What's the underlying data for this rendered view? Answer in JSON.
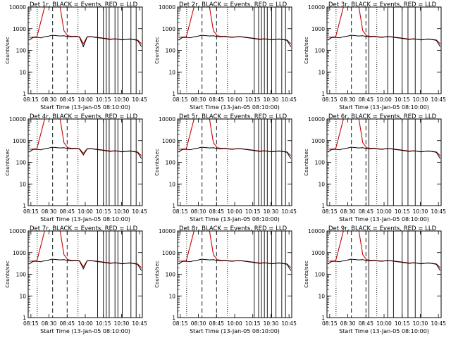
{
  "chart_data": {
    "type": "line",
    "panels": [
      {
        "title": "Det 1r, BLACK = Events, RED = LLD",
        "ylabel": "Counts/sec",
        "xlabel": "Start Time (13-Jan-05 08:10:00)",
        "xticks": [
          "08:15",
          "08:30",
          "08:45",
          "10:00",
          "10:15",
          "10:30",
          "10:45"
        ],
        "yticks": [
          "1",
          "10",
          "100",
          "1000",
          "10000"
        ],
        "ylim": [
          1,
          10000
        ],
        "yscale": "log",
        "solid_events": [
          10.65,
          10.85,
          10.95,
          11.05,
          11.25,
          11.35,
          11.5,
          11.8,
          11.98
        ],
        "series": [
          {
            "color": "#000000",
            "values": [
              300,
              390,
              400,
              380,
              420,
              450,
              500,
              480,
              460,
              470,
              430,
              420,
              440,
              410,
              150,
              420,
              430,
              400,
              380,
              360,
              340,
              320,
              340,
              330,
              300,
              320,
              340,
              310,
              290,
              150
            ]
          },
          {
            "color": "#cc0000",
            "values": [
              400,
              410,
              420,
              2000,
              10000,
              10000,
              10000,
              10000,
              10000,
              800,
              470,
              440,
              450,
              420,
              200,
              420,
              430,
              410,
              390,
              370,
              350,
              330,
              340,
              330,
              310,
              320,
              330,
              320,
              300,
              200
            ]
          }
        ]
      },
      {
        "title": "Det 2r, BLACK = Events, RED = LLD",
        "ylabel": "Counts/sec",
        "xlabel": "Start Time (13-Jan-05 08:10:00)",
        "xticks": [
          "08:15",
          "08:30",
          "08:45",
          "10:00",
          "10:15",
          "10:30",
          "10:45"
        ],
        "yticks": [
          "1",
          "10",
          "100",
          "1000",
          "10000"
        ],
        "ylim": [
          1,
          10000
        ],
        "yscale": "log",
        "solid_events": [
          10.9,
          11.05,
          11.15,
          11.25,
          11.35,
          11.5,
          11.65,
          11.85,
          11.98
        ],
        "series": [
          {
            "color": "#000000",
            "values": [
              300,
              390,
              400,
              380,
              420,
              450,
              500,
              480,
              460,
              470,
              430,
              420,
              440,
              410,
              400,
              420,
              430,
              400,
              380,
              360,
              340,
              320,
              340,
              330,
              300,
              320,
              340,
              310,
              290,
              150
            ]
          },
          {
            "color": "#cc0000",
            "values": [
              400,
              410,
              420,
              2000,
              10000,
              10000,
              10000,
              10000,
              10000,
              800,
              470,
              440,
              450,
              420,
              410,
              420,
              430,
              410,
              390,
              370,
              350,
              330,
              340,
              330,
              310,
              320,
              330,
              320,
              300,
              200
            ]
          }
        ]
      },
      {
        "title": "Det 3r, BLACK = Events, RED = LLD",
        "ylabel": "Counts/sec",
        "xlabel": "Start Time (13-Jan-05 08:10:00)",
        "xticks": [
          "08:15",
          "08:30",
          "08:45",
          "10:00",
          "10:15",
          "10:30",
          "10:45"
        ],
        "yticks": [
          "1",
          "10",
          "100",
          "1000",
          "10000"
        ],
        "ylim": [
          1,
          10000
        ],
        "yscale": "log",
        "solid_events": [
          9.7,
          10.35,
          10.55,
          10.85,
          11.05,
          11.3,
          11.5
        ],
        "series": [
          {
            "color": "#000000",
            "values": [
              300,
              390,
              400,
              380,
              420,
              450,
              500,
              480,
              460,
              470,
              430,
              420,
              440,
              410,
              400,
              420,
              430,
              400,
              380,
              360,
              340,
              320,
              340,
              330,
              300,
              320,
              340,
              310,
              290,
              150
            ]
          },
          {
            "color": "#cc0000",
            "values": [
              400,
              410,
              420,
              2000,
              10000,
              10000,
              10000,
              10000,
              10000,
              800,
              470,
              440,
              450,
              420,
              410,
              420,
              430,
              410,
              390,
              370,
              350,
              330,
              340,
              330,
              310,
              320,
              330,
              320,
              300,
              200
            ]
          }
        ]
      },
      {
        "title": "Det 4r, BLACK = Events, RED = LLD",
        "ylabel": "Counts/sec",
        "xlabel": "Start Time (13-Jan-05 08:10:00)",
        "xticks": [
          "08:15",
          "08:30",
          "08:45",
          "10:00",
          "10:15",
          "10:30",
          "10:45"
        ],
        "yticks": [
          "1",
          "10",
          "100",
          "1000",
          "10000"
        ],
        "ylim": [
          1,
          10000
        ],
        "yscale": "log",
        "solid_events": [
          10.65,
          10.85,
          10.95,
          11.05,
          11.25,
          11.35,
          11.5,
          11.8,
          11.98
        ],
        "series": [
          {
            "color": "#000000",
            "values": [
              300,
              390,
              400,
              380,
              420,
              450,
              500,
              480,
              460,
              470,
              430,
              420,
              440,
              410,
              220,
              420,
              430,
              400,
              380,
              360,
              340,
              320,
              340,
              330,
              300,
              320,
              340,
              310,
              290,
              150
            ]
          },
          {
            "color": "#cc0000",
            "values": [
              400,
              410,
              420,
              2000,
              10000,
              10000,
              10000,
              10000,
              10000,
              800,
              470,
              440,
              450,
              420,
              260,
              420,
              430,
              410,
              390,
              370,
              350,
              330,
              340,
              330,
              310,
              320,
              330,
              320,
              300,
              200
            ]
          }
        ]
      },
      {
        "title": "Det 5r, BLACK = Events, RED = LLD",
        "ylabel": "Counts/sec",
        "xlabel": "Start Time (13-Jan-05 08:10:00)",
        "xticks": [
          "08:15",
          "08:30",
          "08:45",
          "10:00",
          "10:15",
          "10:30",
          "10:45"
        ],
        "yticks": [
          "1",
          "10",
          "100",
          "1000",
          "10000"
        ],
        "ylim": [
          1,
          10000
        ],
        "yscale": "log",
        "solid_events": [
          10.9,
          11.05,
          11.15,
          11.25,
          11.35,
          11.5,
          11.65,
          11.85,
          11.98
        ],
        "series": [
          {
            "color": "#000000",
            "values": [
              300,
              390,
              400,
              380,
              420,
              450,
              500,
              480,
              460,
              470,
              430,
              420,
              440,
              410,
              400,
              420,
              430,
              400,
              380,
              360,
              340,
              320,
              340,
              330,
              300,
              320,
              340,
              310,
              290,
              150
            ]
          },
          {
            "color": "#cc0000",
            "values": [
              400,
              410,
              420,
              2000,
              10000,
              10000,
              10000,
              10000,
              10000,
              800,
              470,
              440,
              450,
              420,
              410,
              420,
              430,
              410,
              390,
              370,
              350,
              330,
              340,
              330,
              310,
              320,
              330,
              320,
              300,
              200
            ]
          }
        ]
      },
      {
        "title": "Det 6r, BLACK = Events, RED = LLD",
        "ylabel": "Counts/sec",
        "xlabel": "Start Time (13-Jan-05 08:10:00)",
        "xticks": [
          "08:15",
          "08:30",
          "08:45",
          "10:00",
          "10:15",
          "10:30",
          "10:45"
        ],
        "yticks": [
          "1",
          "10",
          "100",
          "1000",
          "10000"
        ],
        "ylim": [
          1,
          10000
        ],
        "yscale": "log",
        "solid_events": [
          9.7,
          10.35,
          10.55,
          10.85,
          11.05,
          11.3,
          11.5
        ],
        "series": [
          {
            "color": "#000000",
            "values": [
              300,
              390,
              400,
              380,
              420,
              450,
              500,
              480,
              460,
              470,
              430,
              420,
              440,
              410,
              400,
              420,
              430,
              400,
              380,
              360,
              340,
              320,
              340,
              330,
              300,
              320,
              340,
              310,
              290,
              150
            ]
          },
          {
            "color": "#cc0000",
            "values": [
              400,
              410,
              420,
              2000,
              10000,
              10000,
              10000,
              10000,
              10000,
              800,
              470,
              440,
              450,
              420,
              410,
              420,
              430,
              410,
              390,
              370,
              350,
              330,
              340,
              330,
              310,
              320,
              330,
              320,
              300,
              200
            ]
          }
        ]
      },
      {
        "title": "Det 7r, BLACK = Events, RED = LLD",
        "ylabel": "Counts/sec",
        "xlabel": "Start Time (13-Jan-05 08:10:00)",
        "xticks": [
          "08:15",
          "08:30",
          "08:45",
          "10:00",
          "10:15",
          "10:30",
          "10:45"
        ],
        "yticks": [
          "1",
          "10",
          "100",
          "1000",
          "10000"
        ],
        "ylim": [
          1,
          10000
        ],
        "yscale": "log",
        "solid_events": [
          10.65,
          10.85,
          10.95,
          11.05,
          11.25,
          11.35,
          11.5,
          11.8,
          11.98
        ],
        "series": [
          {
            "color": "#000000",
            "values": [
              300,
              390,
              400,
              380,
              420,
              450,
              500,
              480,
              460,
              470,
              430,
              420,
              440,
              410,
              180,
              420,
              430,
              400,
              380,
              360,
              340,
              320,
              340,
              330,
              300,
              320,
              340,
              310,
              290,
              150
            ]
          },
          {
            "color": "#cc0000",
            "values": [
              400,
              410,
              420,
              2000,
              10000,
              10000,
              10000,
              10000,
              10000,
              800,
              470,
              440,
              450,
              420,
              220,
              420,
              430,
              410,
              390,
              370,
              350,
              330,
              340,
              330,
              310,
              320,
              330,
              320,
              300,
              200
            ]
          }
        ]
      },
      {
        "title": "Det 8r, BLACK = Events, RED = LLD",
        "ylabel": "Counts/sec",
        "xlabel": "Start Time (13-Jan-05 08:10:00)",
        "xticks": [
          "08:15",
          "08:30",
          "08:45",
          "10:00",
          "10:15",
          "10:30",
          "10:45"
        ],
        "yticks": [
          "1",
          "10",
          "100",
          "1000",
          "10000"
        ],
        "ylim": [
          1,
          10000
        ],
        "yscale": "log",
        "solid_events": [
          10.9,
          11.05,
          11.15,
          11.25,
          11.35,
          11.5,
          11.65,
          11.85,
          11.98
        ],
        "series": [
          {
            "color": "#000000",
            "values": [
              300,
              390,
              400,
              380,
              420,
              450,
              500,
              480,
              460,
              470,
              430,
              420,
              440,
              410,
              400,
              420,
              430,
              400,
              380,
              360,
              340,
              320,
              340,
              330,
              300,
              320,
              340,
              310,
              290,
              150
            ]
          },
          {
            "color": "#cc0000",
            "values": [
              400,
              410,
              420,
              2000,
              10000,
              10000,
              10000,
              10000,
              10000,
              800,
              470,
              440,
              450,
              420,
              410,
              420,
              430,
              410,
              390,
              370,
              350,
              330,
              340,
              330,
              310,
              320,
              330,
              320,
              300,
              200
            ]
          }
        ]
      },
      {
        "title": "Det 9r, BLACK = Events, RED = LLD",
        "ylabel": "Counts/sec",
        "xlabel": "Start Time (13-Jan-05 08:10:00)",
        "xticks": [
          "08:15",
          "08:30",
          "08:45",
          "10:00",
          "10:15",
          "10:30",
          "10:45"
        ],
        "yticks": [
          "1",
          "10",
          "100",
          "1000",
          "10000"
        ],
        "ylim": [
          1,
          10000
        ],
        "yscale": "log",
        "solid_events": [
          9.7,
          10.35,
          10.55,
          10.85,
          11.05,
          11.3,
          11.5
        ],
        "series": [
          {
            "color": "#000000",
            "values": [
              300,
              390,
              400,
              380,
              420,
              450,
              500,
              480,
              460,
              470,
              430,
              420,
              440,
              410,
              400,
              420,
              430,
              400,
              380,
              360,
              340,
              320,
              340,
              330,
              300,
              320,
              340,
              310,
              290,
              150
            ]
          },
          {
            "color": "#cc0000",
            "values": [
              400,
              410,
              420,
              2000,
              10000,
              10000,
              10000,
              10000,
              10000,
              800,
              470,
              440,
              450,
              420,
              410,
              420,
              430,
              410,
              390,
              370,
              350,
              330,
              340,
              330,
              310,
              320,
              330,
              320,
              300,
              200
            ]
          }
        ]
      }
    ]
  }
}
